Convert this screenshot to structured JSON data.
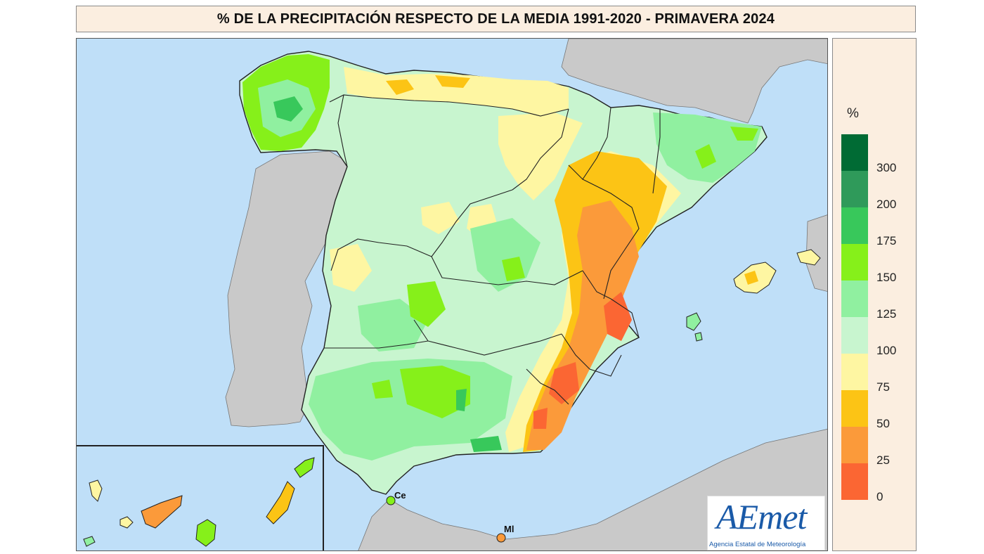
{
  "title": "% DE LA PRECIPITACIÓN RESPECTO DE LA MEDIA 1991-2020 - PRIMAVERA 2024",
  "legend": {
    "unit": "%",
    "classes": [
      {
        "label": "300",
        "color": "#006b34"
      },
      {
        "label": "200",
        "color": "#2f9a5a"
      },
      {
        "label": "175",
        "color": "#38c85b"
      },
      {
        "label": "150",
        "color": "#86f01a"
      },
      {
        "label": "125",
        "color": "#90f0a0"
      },
      {
        "label": "100",
        "color": "#c8f5cf"
      },
      {
        "label": "75",
        "color": "#fef6a2"
      },
      {
        "label": "50",
        "color": "#fcc415"
      },
      {
        "label": "25",
        "color": "#fb9a3a"
      },
      {
        "label": "0",
        "color": "#fb6633"
      }
    ]
  },
  "cities": [
    {
      "code": "Ce",
      "color": "#86f01a"
    },
    {
      "code": "Ml",
      "color": "#fb9a3a"
    }
  ],
  "logo": {
    "name": "AEmet",
    "subtitle": "Agencia Estatal de Meteorología"
  },
  "colors": {
    "sea": "#bfdff8",
    "other_land": "#c9c9c9",
    "title_background": "#fbeee0"
  }
}
